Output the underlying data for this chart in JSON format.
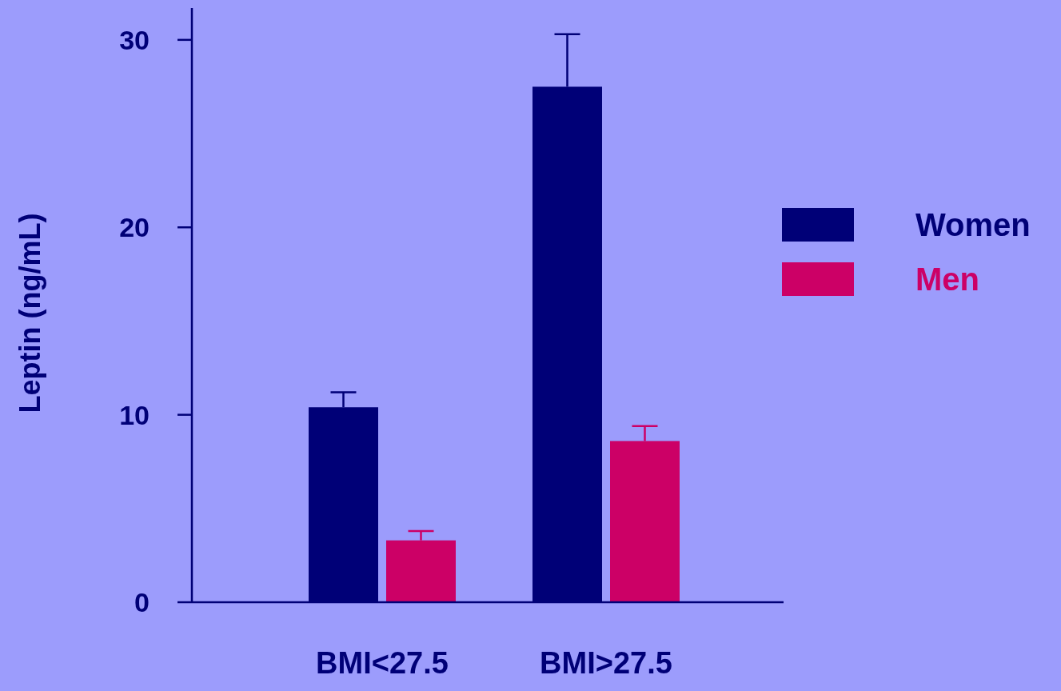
{
  "chart_data": {
    "type": "bar",
    "ylabel": "Leptin (ng/mL)",
    "categories": [
      "BMI<27.5",
      "BMI>27.5"
    ],
    "series": [
      {
        "name": "Women",
        "color": "#000077",
        "values": [
          10.4,
          27.5
        ],
        "errors": [
          [
            10.4,
            11.2
          ],
          [
            27.5,
            30.3
          ]
        ]
      },
      {
        "name": "Men",
        "color": "#cc0066",
        "values": [
          3.3,
          8.6
        ],
        "errors": [
          [
            3.3,
            3.8
          ],
          [
            8.6,
            9.4
          ]
        ]
      }
    ],
    "ylim": [
      0,
      31.7
    ],
    "yticks": [
      0,
      10,
      20,
      30
    ],
    "grid": false,
    "legend": "right"
  }
}
